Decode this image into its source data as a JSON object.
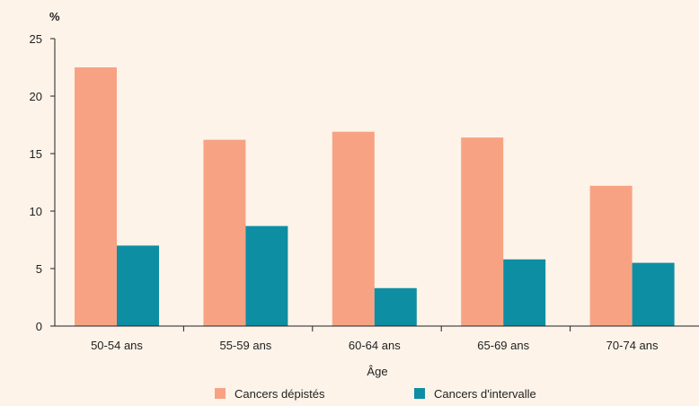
{
  "chart_data": {
    "type": "bar",
    "ylabel": "%",
    "xlabel": "Âge",
    "ylim": [
      0,
      25
    ],
    "yticks": [
      0,
      5,
      10,
      15,
      20,
      25
    ],
    "categories": [
      "50-54 ans",
      "55-59 ans",
      "60-64 ans",
      "65-69 ans",
      "70-74 ans"
    ],
    "series": [
      {
        "name": "Cancers dépistés",
        "color": "#f7a383",
        "values": [
          22.5,
          16.2,
          16.9,
          16.4,
          12.2
        ]
      },
      {
        "name": "Cancers d'intervalle",
        "color": "#0e8ea3",
        "values": [
          7.0,
          8.7,
          3.3,
          5.8,
          5.5
        ]
      }
    ],
    "grid": false,
    "legend": "bottom"
  }
}
